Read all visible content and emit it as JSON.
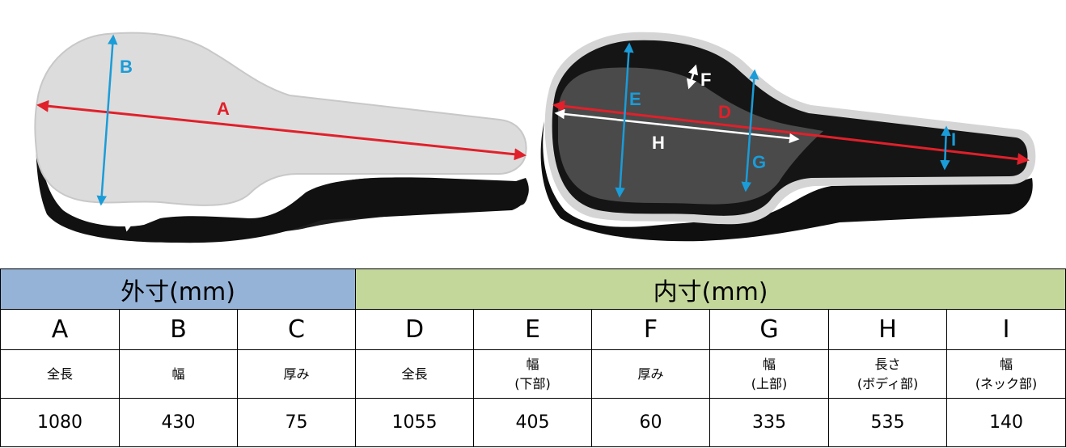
{
  "figure": {
    "labels": {
      "A": "A",
      "B": "B",
      "C": "C",
      "D": "D",
      "E": "E",
      "F": "F",
      "G": "G",
      "H": "H",
      "I": "I"
    },
    "colors": {
      "red": "#e0202a",
      "blue": "#1a9cd8",
      "white": "#ffffff"
    }
  },
  "table": {
    "outer_header": "外寸(mm)",
    "inner_header": "内寸(mm)",
    "columns": [
      {
        "letter": "A",
        "desc1": "全長",
        "desc2": "",
        "value": "1080"
      },
      {
        "letter": "B",
        "desc1": "幅",
        "desc2": "",
        "value": "430"
      },
      {
        "letter": "C",
        "desc1": "厚み",
        "desc2": "",
        "value": "75"
      },
      {
        "letter": "D",
        "desc1": "全長",
        "desc2": "",
        "value": "1055"
      },
      {
        "letter": "E",
        "desc1": "幅",
        "desc2": "(下部)",
        "value": "405"
      },
      {
        "letter": "F",
        "desc1": "厚み",
        "desc2": "",
        "value": "60"
      },
      {
        "letter": "G",
        "desc1": "幅",
        "desc2": "(上部)",
        "value": "335"
      },
      {
        "letter": "H",
        "desc1": "長さ",
        "desc2": "(ボディ部)",
        "value": "535"
      },
      {
        "letter": "I",
        "desc1": "幅",
        "desc2": "(ネック部)",
        "value": "140"
      }
    ]
  }
}
